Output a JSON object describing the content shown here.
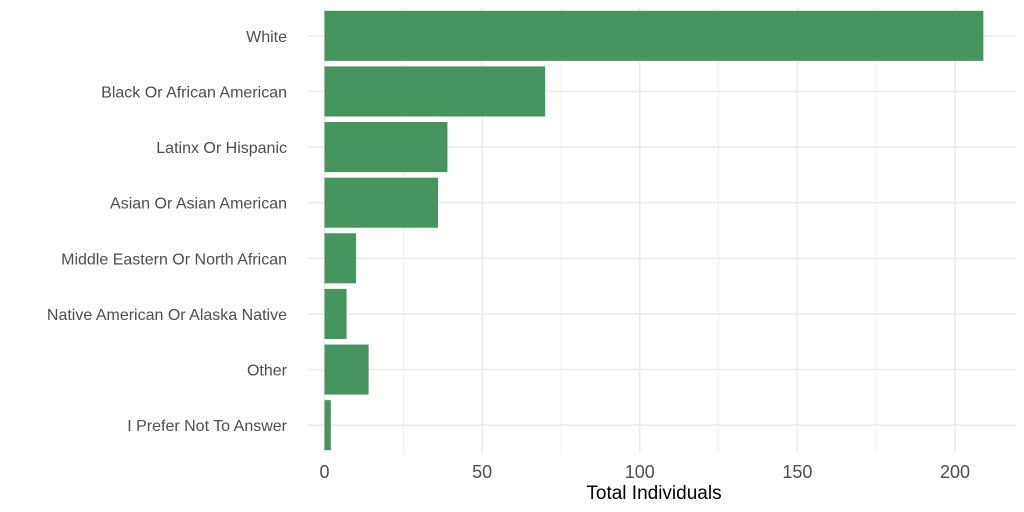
{
  "chart_data": {
    "type": "bar",
    "orientation": "horizontal",
    "categories": [
      "White",
      "Black Or African American",
      "Latinx Or Hispanic",
      "Asian Or Asian American",
      "Middle Eastern Or North African",
      "Native American Or Alaska Native",
      "Other",
      "I Prefer Not To Answer"
    ],
    "values": [
      209,
      70,
      39,
      36,
      10,
      7,
      14,
      2
    ],
    "xlabel": "Total Individuals",
    "ylabel": "",
    "title": "",
    "xlim": [
      0,
      212
    ],
    "x_ticks": [
      0,
      50,
      100,
      150,
      200
    ],
    "grid": true,
    "legend": "none",
    "colors": {
      "bar": "#46945f",
      "grid": "#ebebeb",
      "background": "#ffffff"
    }
  }
}
